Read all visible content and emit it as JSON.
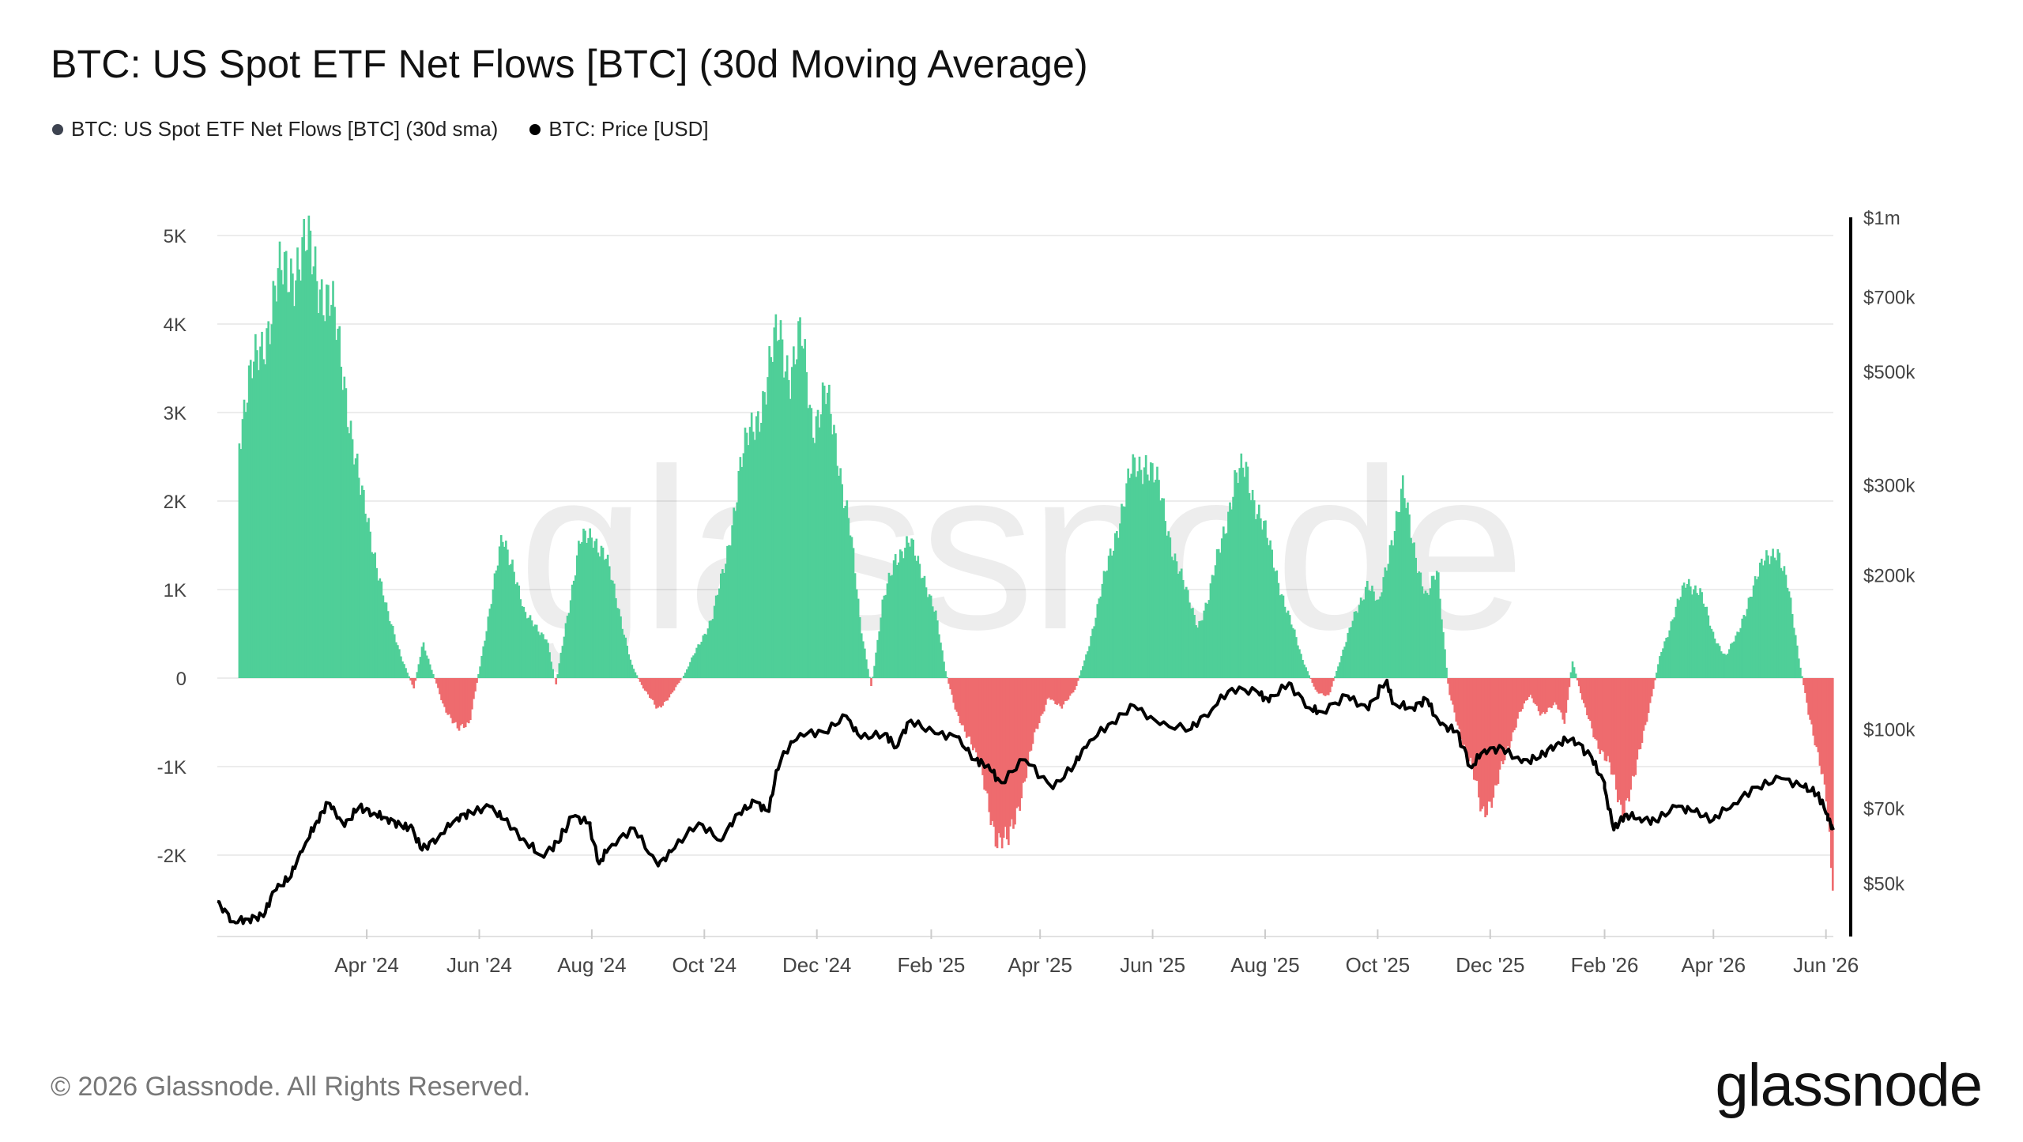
{
  "title": "BTC: US Spot ETF Net Flows [BTC] (30d Moving Average)",
  "legend": [
    {
      "label": "BTC: US Spot ETF Net Flows [BTC] (30d sma)",
      "color": "#3d4350"
    },
    {
      "label": "BTC: Price [USD]",
      "color": "#000000"
    }
  ],
  "watermark": "glassnode",
  "footer": {
    "copyright": "© 2026 Glassnode. All Rights Reserved.",
    "brand": "glassnode"
  },
  "colors": {
    "positive": "#4fcf98",
    "negative": "#ee6b6e",
    "price": "#000000",
    "grid": "#ececec"
  },
  "chart_data": {
    "type": "bar",
    "title": "BTC: US Spot ETF Net Flows [BTC] (30d Moving Average)",
    "x_start": "2024-01-11",
    "x_end": "2026-06-05",
    "x_ticks": [
      {
        "label": "Apr '24",
        "date": "2024-04-01"
      },
      {
        "label": "Jun '24",
        "date": "2024-06-01"
      },
      {
        "label": "Aug '24",
        "date": "2024-08-01"
      },
      {
        "label": "Oct '24",
        "date": "2024-10-01"
      },
      {
        "label": "Dec '24",
        "date": "2024-12-01"
      },
      {
        "label": "Feb '25",
        "date": "2025-02-01"
      },
      {
        "label": "Apr '25",
        "date": "2025-04-01"
      },
      {
        "label": "Jun '25",
        "date": "2025-06-01"
      },
      {
        "label": "Aug '25",
        "date": "2025-08-01"
      },
      {
        "label": "Oct '25",
        "date": "2025-10-01"
      },
      {
        "label": "Dec '25",
        "date": "2025-12-01"
      },
      {
        "label": "Feb '26",
        "date": "2026-02-01"
      },
      {
        "label": "Apr '26",
        "date": "2026-04-01"
      },
      {
        "label": "Jun '26",
        "date": "2026-06-01"
      }
    ],
    "y_left": {
      "ylim": [
        -2900,
        5000
      ],
      "ticks": [
        {
          "v": 5000,
          "label": "5K"
        },
        {
          "v": 4000,
          "label": "4K"
        },
        {
          "v": 3000,
          "label": "3K"
        },
        {
          "v": 2000,
          "label": "2K"
        },
        {
          "v": 1000,
          "label": "1K"
        },
        {
          "v": 0,
          "label": "0"
        },
        {
          "v": -1000,
          "label": "-1K"
        },
        {
          "v": -2000,
          "label": "-2K"
        }
      ]
    },
    "y_right": {
      "scale": "log",
      "ylim": [
        40000,
        1000000
      ],
      "ticks": [
        {
          "v": 1000000,
          "label": "$1m"
        },
        {
          "v": 700000,
          "label": "$700k"
        },
        {
          "v": 500000,
          "label": "$500k"
        },
        {
          "v": 300000,
          "label": "$300k"
        },
        {
          "v": 200000,
          "label": "$200k"
        },
        {
          "v": 100000,
          "label": "$100k"
        },
        {
          "v": 70000,
          "label": "$70k"
        },
        {
          "v": 50000,
          "label": "$50k"
        }
      ]
    },
    "series": [
      {
        "name": "BTC: US Spot ETF Net Flows [BTC] (30d sma)",
        "type": "bar",
        "points": [
          [
            "2024-01-11",
            0
          ],
          [
            "2024-01-20",
            2600
          ],
          [
            "2024-01-28",
            3300
          ],
          [
            "2024-02-05",
            3900
          ],
          [
            "2024-02-12",
            4400
          ],
          [
            "2024-02-20",
            4700
          ],
          [
            "2024-02-28",
            4800
          ],
          [
            "2024-03-05",
            4600
          ],
          [
            "2024-03-12",
            4200
          ],
          [
            "2024-03-20",
            3300
          ],
          [
            "2024-03-28",
            2100
          ],
          [
            "2024-04-05",
            1400
          ],
          [
            "2024-04-12",
            700
          ],
          [
            "2024-04-20",
            200
          ],
          [
            "2024-04-26",
            -120
          ],
          [
            "2024-05-01",
            400
          ],
          [
            "2024-05-06",
            80
          ],
          [
            "2024-05-12",
            -300
          ],
          [
            "2024-05-20",
            -600
          ],
          [
            "2024-05-26",
            -500
          ],
          [
            "2024-06-01",
            150
          ],
          [
            "2024-06-07",
            900
          ],
          [
            "2024-06-13",
            1550
          ],
          [
            "2024-06-19",
            1300
          ],
          [
            "2024-06-25",
            700
          ],
          [
            "2024-07-01",
            600
          ],
          [
            "2024-07-07",
            450
          ],
          [
            "2024-07-12",
            -80
          ],
          [
            "2024-07-18",
            700
          ],
          [
            "2024-07-25",
            1500
          ],
          [
            "2024-08-01",
            1650
          ],
          [
            "2024-08-08",
            1350
          ],
          [
            "2024-08-15",
            800
          ],
          [
            "2024-08-22",
            150
          ],
          [
            "2024-08-28",
            -100
          ],
          [
            "2024-09-05",
            -350
          ],
          [
            "2024-09-12",
            -200
          ],
          [
            "2024-09-20",
            50
          ],
          [
            "2024-09-28",
            400
          ],
          [
            "2024-10-05",
            700
          ],
          [
            "2024-10-12",
            1300
          ],
          [
            "2024-10-20",
            2400
          ],
          [
            "2024-10-28",
            2900
          ],
          [
            "2024-11-04",
            3400
          ],
          [
            "2024-11-10",
            3900
          ],
          [
            "2024-11-16",
            3500
          ],
          [
            "2024-11-22",
            3800
          ],
          [
            "2024-11-28",
            2900
          ],
          [
            "2024-12-05",
            3200
          ],
          [
            "2024-12-12",
            2500
          ],
          [
            "2024-12-18",
            1800
          ],
          [
            "2024-12-24",
            600
          ],
          [
            "2024-12-30",
            -100
          ],
          [
            "2025-01-05",
            800
          ],
          [
            "2025-01-12",
            1400
          ],
          [
            "2025-01-20",
            1500
          ],
          [
            "2025-01-27",
            1200
          ],
          [
            "2025-02-03",
            700
          ],
          [
            "2025-02-08",
            100
          ],
          [
            "2025-02-14",
            -400
          ],
          [
            "2025-02-22",
            -700
          ],
          [
            "2025-03-01",
            -1200
          ],
          [
            "2025-03-08",
            -1800
          ],
          [
            "2025-03-14",
            -1900
          ],
          [
            "2025-03-20",
            -1400
          ],
          [
            "2025-03-28",
            -700
          ],
          [
            "2025-04-05",
            -200
          ],
          [
            "2025-04-12",
            -350
          ],
          [
            "2025-04-20",
            -100
          ],
          [
            "2025-04-26",
            300
          ],
          [
            "2025-05-04",
            1000
          ],
          [
            "2025-05-12",
            1700
          ],
          [
            "2025-05-20",
            2300
          ],
          [
            "2025-05-28",
            2500
          ],
          [
            "2025-06-04",
            2100
          ],
          [
            "2025-06-11",
            1500
          ],
          [
            "2025-06-18",
            1000
          ],
          [
            "2025-06-25",
            600
          ],
          [
            "2025-07-01",
            900
          ],
          [
            "2025-07-08",
            1600
          ],
          [
            "2025-07-15",
            2200
          ],
          [
            "2025-07-21",
            2350
          ],
          [
            "2025-07-28",
            1900
          ],
          [
            "2025-08-05",
            1300
          ],
          [
            "2025-08-12",
            800
          ],
          [
            "2025-08-20",
            250
          ],
          [
            "2025-08-28",
            -150
          ],
          [
            "2025-09-04",
            -200
          ],
          [
            "2025-09-10",
            200
          ],
          [
            "2025-09-18",
            700
          ],
          [
            "2025-09-25",
            1100
          ],
          [
            "2025-10-01",
            800
          ],
          [
            "2025-10-08",
            1600
          ],
          [
            "2025-10-14",
            2100
          ],
          [
            "2025-10-20",
            1500
          ],
          [
            "2025-10-27",
            900
          ],
          [
            "2025-11-02",
            1200
          ],
          [
            "2025-11-08",
            -150
          ],
          [
            "2025-11-14",
            -600
          ],
          [
            "2025-11-20",
            -1000
          ],
          [
            "2025-11-26",
            -1500
          ],
          [
            "2025-12-03",
            -1300
          ],
          [
            "2025-12-10",
            -800
          ],
          [
            "2025-12-16",
            -400
          ],
          [
            "2025-12-22",
            -200
          ],
          [
            "2025-12-28",
            -400
          ],
          [
            "2026-01-05",
            -300
          ],
          [
            "2026-01-10",
            -500
          ],
          [
            "2026-01-14",
            200
          ],
          [
            "2026-01-20",
            -300
          ],
          [
            "2026-01-27",
            -700
          ],
          [
            "2026-02-03",
            -1000
          ],
          [
            "2026-02-10",
            -1500
          ],
          [
            "2026-02-17",
            -1100
          ],
          [
            "2026-02-24",
            -400
          ],
          [
            "2026-03-03",
            300
          ],
          [
            "2026-03-10",
            700
          ],
          [
            "2026-03-17",
            1100
          ],
          [
            "2026-03-24",
            1000
          ],
          [
            "2026-03-31",
            500
          ],
          [
            "2026-04-07",
            250
          ],
          [
            "2026-04-14",
            500
          ],
          [
            "2026-04-21",
            1000
          ],
          [
            "2026-04-28",
            1300
          ],
          [
            "2026-05-05",
            1500
          ],
          [
            "2026-05-11",
            1000
          ],
          [
            "2026-05-17",
            200
          ],
          [
            "2026-05-22",
            -400
          ],
          [
            "2026-05-28",
            -900
          ],
          [
            "2026-06-01",
            -1400
          ],
          [
            "2026-06-03",
            -2200
          ],
          [
            "2026-06-05",
            -2500
          ]
        ]
      },
      {
        "name": "BTC: Price [USD]",
        "type": "line",
        "axis": "right",
        "points": [
          [
            "2024-01-11",
            46000
          ],
          [
            "2024-01-20",
            42000
          ],
          [
            "2024-01-28",
            42500
          ],
          [
            "2024-02-05",
            43000
          ],
          [
            "2024-02-12",
            48500
          ],
          [
            "2024-02-20",
            51500
          ],
          [
            "2024-02-28",
            60000
          ],
          [
            "2024-03-05",
            66000
          ],
          [
            "2024-03-12",
            71500
          ],
          [
            "2024-03-20",
            64500
          ],
          [
            "2024-03-28",
            70500
          ],
          [
            "2024-04-05",
            68500
          ],
          [
            "2024-04-12",
            67000
          ],
          [
            "2024-04-20",
            64500
          ],
          [
            "2024-04-26",
            64000
          ],
          [
            "2024-05-01",
            58000
          ],
          [
            "2024-05-10",
            61500
          ],
          [
            "2024-05-20",
            67000
          ],
          [
            "2024-05-28",
            68500
          ],
          [
            "2024-06-07",
            70500
          ],
          [
            "2024-06-15",
            66500
          ],
          [
            "2024-06-25",
            61000
          ],
          [
            "2024-07-05",
            56500
          ],
          [
            "2024-07-14",
            60000
          ],
          [
            "2024-07-22",
            67500
          ],
          [
            "2024-07-31",
            65500
          ],
          [
            "2024-08-05",
            54500
          ],
          [
            "2024-08-12",
            59500
          ],
          [
            "2024-08-24",
            64000
          ],
          [
            "2024-09-06",
            54000
          ],
          [
            "2024-09-15",
            58500
          ],
          [
            "2024-09-28",
            65500
          ],
          [
            "2024-10-10",
            60500
          ],
          [
            "2024-10-20",
            68500
          ],
          [
            "2024-10-29",
            72000
          ],
          [
            "2024-11-05",
            69000
          ],
          [
            "2024-11-12",
            88000
          ],
          [
            "2024-11-22",
            98000
          ],
          [
            "2024-12-05",
            98500
          ],
          [
            "2024-12-17",
            106000
          ],
          [
            "2024-12-25",
            96000
          ],
          [
            "2025-01-07",
            98000
          ],
          [
            "2025-01-13",
            92000
          ],
          [
            "2025-01-21",
            104000
          ],
          [
            "2025-02-03",
            98000
          ],
          [
            "2025-02-15",
            96500
          ],
          [
            "2025-02-25",
            87000
          ],
          [
            "2025-03-04",
            85000
          ],
          [
            "2025-03-11",
            78500
          ],
          [
            "2025-03-24",
            87000
          ],
          [
            "2025-04-08",
            76500
          ],
          [
            "2025-04-20",
            85500
          ],
          [
            "2025-04-28",
            95000
          ],
          [
            "2025-05-10",
            103000
          ],
          [
            "2025-05-22",
            111000
          ],
          [
            "2025-06-05",
            102000
          ],
          [
            "2025-06-22",
            100000
          ],
          [
            "2025-07-03",
            109000
          ],
          [
            "2025-07-14",
            120000
          ],
          [
            "2025-07-28",
            118000
          ],
          [
            "2025-08-03",
            113000
          ],
          [
            "2025-08-14",
            123000
          ],
          [
            "2025-08-25",
            110000
          ],
          [
            "2025-09-01",
            108000
          ],
          [
            "2025-09-15",
            116000
          ],
          [
            "2025-09-26",
            109000
          ],
          [
            "2025-10-06",
            124500
          ],
          [
            "2025-10-10",
            112000
          ],
          [
            "2025-10-20",
            110000
          ],
          [
            "2025-10-28",
            114000
          ],
          [
            "2025-11-04",
            102000
          ],
          [
            "2025-11-13",
            99000
          ],
          [
            "2025-11-21",
            84000
          ],
          [
            "2025-11-28",
            91000
          ],
          [
            "2025-12-08",
            91500
          ],
          [
            "2025-12-18",
            86000
          ],
          [
            "2025-12-28",
            88000
          ],
          [
            "2026-01-06",
            93500
          ],
          [
            "2026-01-15",
            96000
          ],
          [
            "2026-01-25",
            88000
          ],
          [
            "2026-02-01",
            78500
          ],
          [
            "2026-02-06",
            63500
          ],
          [
            "2026-02-12",
            68000
          ],
          [
            "2026-02-20",
            67000
          ],
          [
            "2026-03-01",
            66000
          ],
          [
            "2026-03-12",
            70500
          ],
          [
            "2026-03-22",
            69000
          ],
          [
            "2026-04-01",
            66500
          ],
          [
            "2026-04-12",
            71500
          ],
          [
            "2026-04-25",
            77000
          ],
          [
            "2026-05-08",
            80000
          ],
          [
            "2026-05-20",
            77000
          ],
          [
            "2026-05-28",
            75000
          ],
          [
            "2026-06-02",
            68000
          ],
          [
            "2026-06-05",
            63500
          ]
        ]
      }
    ]
  }
}
